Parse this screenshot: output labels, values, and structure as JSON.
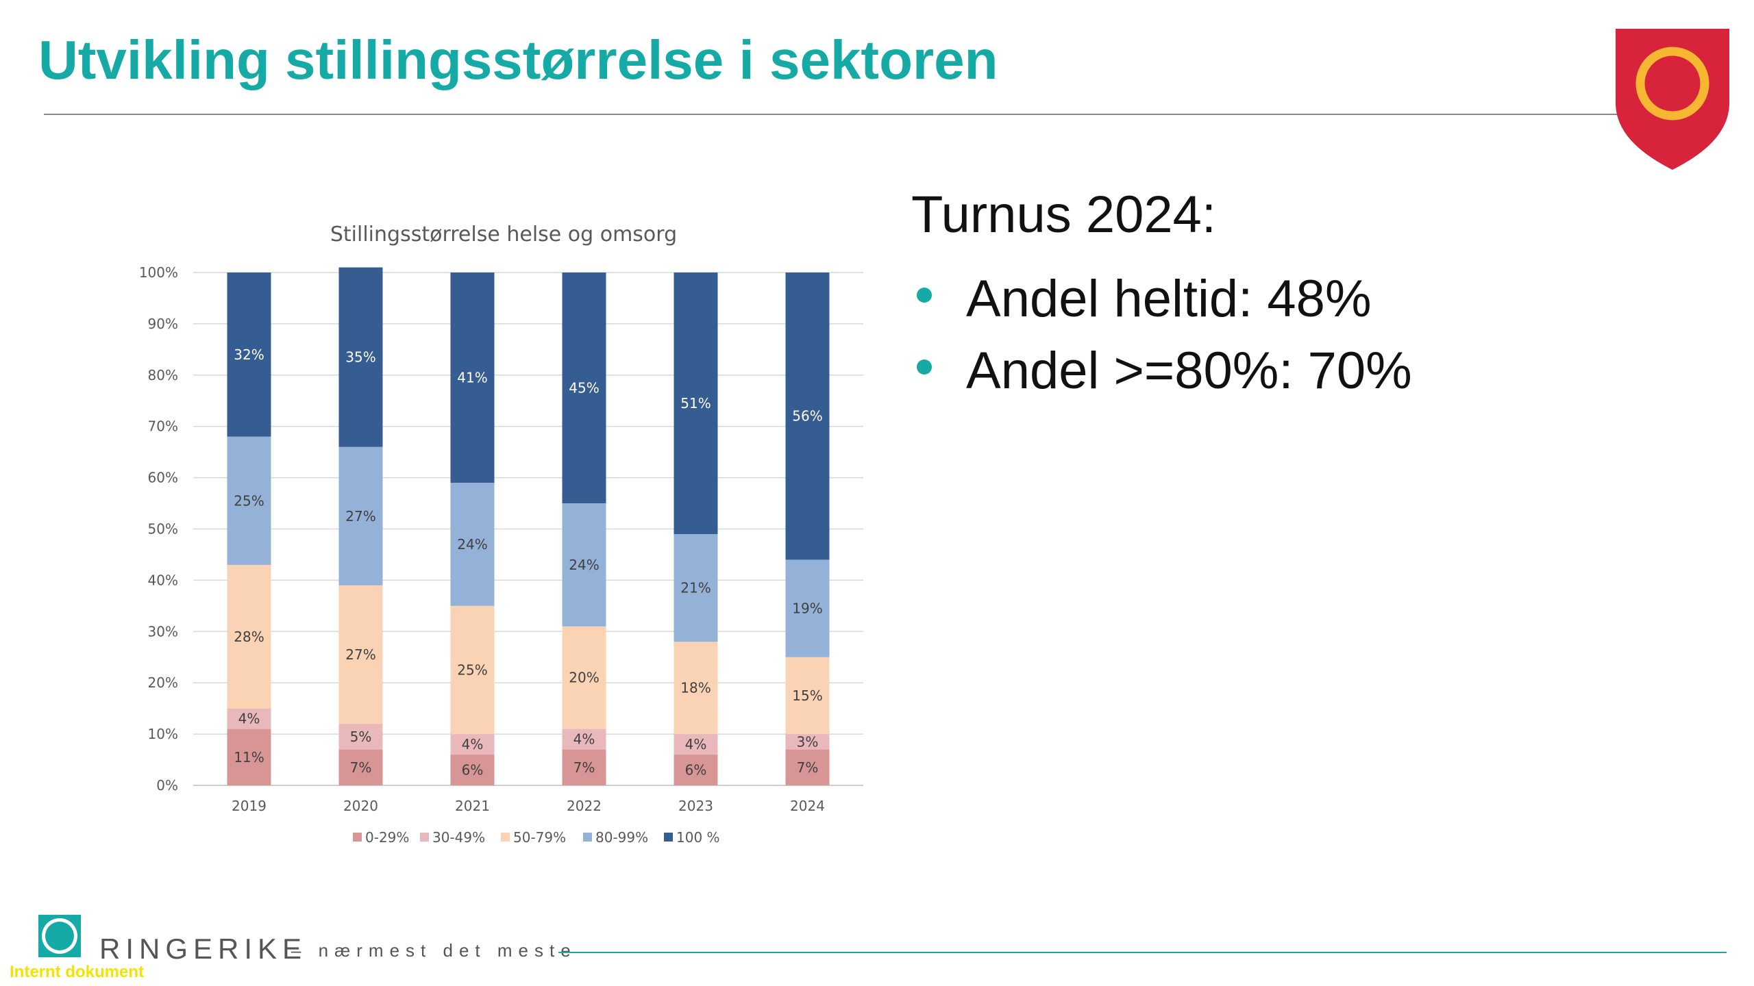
{
  "slide": {
    "title": "Utvikling stillingsstørrelse i sektoren"
  },
  "info": {
    "heading": "Turnus 2024:",
    "bullets": [
      "Andel heltid: 48%",
      "Andel >=80%: 70%"
    ]
  },
  "footer": {
    "brand": "RINGERIKE",
    "tagline": "– nærmest det meste",
    "internal_note": "Internt dokument"
  },
  "colors": {
    "accent": "#16aaa6",
    "crest_red": "#d7243a",
    "crest_ring": "#f7b733"
  },
  "chart_data": {
    "type": "bar",
    "stacked": true,
    "title": "Stillingsstørrelse helse og omsorg",
    "categories": [
      "2019",
      "2020",
      "2021",
      "2022",
      "2023",
      "2024"
    ],
    "ylim": [
      0,
      100
    ],
    "y_ticks": [
      "0%",
      "10%",
      "20%",
      "30%",
      "40%",
      "50%",
      "60%",
      "70%",
      "80%",
      "90%",
      "100%"
    ],
    "grid": true,
    "legend_position": "bottom",
    "series": [
      {
        "name": "0-29%",
        "color": "#d79595",
        "values": [
          11,
          7,
          6,
          7,
          6,
          7
        ],
        "labels": [
          "11%",
          "7%",
          "6%",
          "7%",
          "6%",
          "7%"
        ]
      },
      {
        "name": "30-49%",
        "color": "#e8b8bb",
        "values": [
          4,
          5,
          4,
          4,
          4,
          3
        ],
        "labels": [
          "4%",
          "5%",
          "4%",
          "4%",
          "4%",
          "3%"
        ]
      },
      {
        "name": "50-79%",
        "color": "#f9d3b4",
        "values": [
          28,
          27,
          25,
          20,
          18,
          15
        ],
        "labels": [
          "28%",
          "27%",
          "25%",
          "20%",
          "18%",
          "15%"
        ]
      },
      {
        "name": "80-99%",
        "color": "#94b1d8",
        "values": [
          25,
          27,
          24,
          24,
          21,
          19
        ],
        "labels": [
          "25%",
          "27%",
          "24%",
          "24%",
          "21%",
          "19%"
        ]
      },
      {
        "name": "100 %",
        "color": "#365d91",
        "values": [
          32,
          35,
          41,
          45,
          51,
          56
        ],
        "labels": [
          "32%",
          "35%",
          "41%",
          "45%",
          "51%",
          "56%"
        ],
        "label_color": "#ffffff"
      }
    ]
  }
}
